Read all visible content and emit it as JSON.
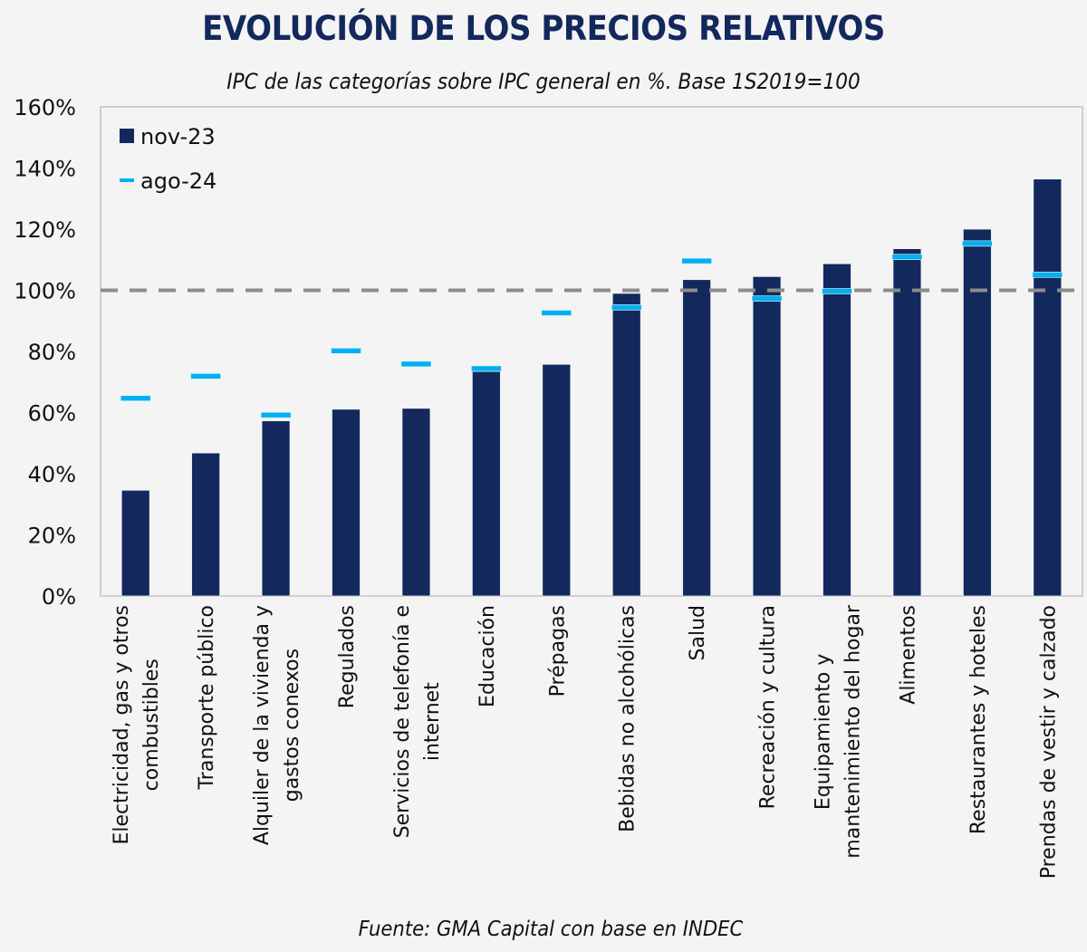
{
  "chart_data": {
    "type": "bar",
    "title": "EVOLUCIÓN DE LOS PRECIOS RELATIVOS",
    "subtitle": "IPC de las categorías sobre IPC general en %. Base 1S2019=100",
    "source": "Fuente: GMA Capital con base en INDEC",
    "xlabel": "",
    "ylabel": "",
    "ylim": [
      0,
      160
    ],
    "yticks": [
      0,
      20,
      40,
      60,
      80,
      100,
      120,
      140,
      160
    ],
    "ytick_format": "{v}%",
    "reference_line": {
      "value": 100,
      "style": "dashed",
      "color": "#8c8c8c"
    },
    "legend": {
      "placement": "top-left",
      "entries": [
        {
          "name": "nov-23",
          "marker": "square",
          "color": "#13285c"
        },
        {
          "name": "ago-24",
          "marker": "dash",
          "color": "#00b0f0"
        }
      ]
    },
    "categories": [
      [
        "Electricidad, gas y otros",
        "combustibles"
      ],
      [
        "Transporte público"
      ],
      [
        "Alquiler de la vivienda y",
        "gastos conexos"
      ],
      [
        "Regulados"
      ],
      [
        "Servicios de telefonía e",
        "internet"
      ],
      [
        "Educación"
      ],
      [
        "Prépagas"
      ],
      [
        "Bebidas no alcohólicas"
      ],
      [
        "Salud"
      ],
      [
        "Recreación y cultura"
      ],
      [
        "Equipamiento y",
        "mantenimiento del hogar"
      ],
      [
        "Alimentos"
      ],
      [
        "Restaurantes y hoteles"
      ],
      [
        "Prendas de vestir y calzado"
      ]
    ],
    "series": [
      {
        "name": "nov-23",
        "kind": "bar",
        "color": "#13285c",
        "values": [
          34.6,
          46.8,
          57.3,
          61.1,
          61.4,
          73.5,
          75.8,
          99.0,
          103.5,
          104.5,
          108.7,
          113.6,
          120.0,
          136.4
        ]
      },
      {
        "name": "ago-24",
        "kind": "marker",
        "color": "#00b0f0",
        "values": [
          64.7,
          71.9,
          59.2,
          80.2,
          75.9,
          74.4,
          92.6,
          94.4,
          109.6,
          97.3,
          99.7,
          110.9,
          115.3,
          105.1
        ]
      }
    ]
  }
}
